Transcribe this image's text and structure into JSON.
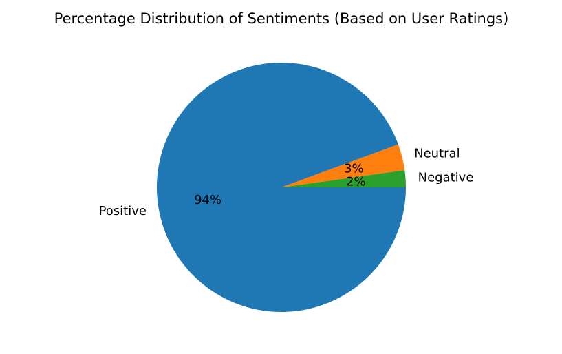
{
  "chart_data": {
    "type": "pie",
    "title": "Percentage Distribution of Sentiments (Based on User Ratings)",
    "slices": [
      {
        "label": "Negative",
        "value": 2.2,
        "pct_label": "2%",
        "color": "#2ca02c"
      },
      {
        "label": "Neutral",
        "value": 3.4,
        "pct_label": "3%",
        "color": "#ff7f0e"
      },
      {
        "label": "Positive",
        "value": 94.4,
        "pct_label": "94%",
        "color": "#1f77b4"
      }
    ],
    "legend": "none"
  }
}
